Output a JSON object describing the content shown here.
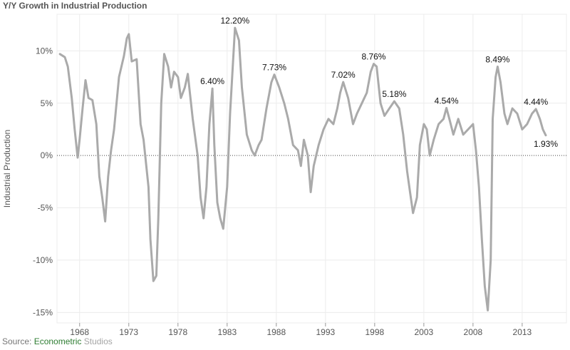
{
  "title": "Y/Y Growth in Industrial Production",
  "source": {
    "prefix": "Source: ",
    "brand_part1": "Econometric",
    "brand_part2": " Studios"
  },
  "colors": {
    "line": "#aaaaaa",
    "grid": "#ececec",
    "zero_line": "#444444",
    "brand_green": "#2e7d32",
    "brand_gray": "#a5a5a5"
  },
  "chart_data": {
    "type": "line",
    "title": "Y/Y Growth in Industrial Production",
    "xlabel": "",
    "ylabel": "Industrial Production",
    "x_ticks": [
      1968,
      1973,
      1978,
      1983,
      1988,
      1993,
      1998,
      2003,
      2008,
      2013
    ],
    "y_ticks": [
      10,
      5,
      0,
      -5,
      -10,
      -15
    ],
    "y_tick_labels": [
      "10%",
      "5%",
      "0%",
      "-5%",
      "-10%",
      "-15%"
    ],
    "xlim": [
      1965.7,
      2017.5
    ],
    "ylim": [
      -16,
      13.5
    ],
    "grid": true,
    "series": [
      {
        "name": "",
        "points": [
          [
            1966.0,
            9.7
          ],
          [
            1966.5,
            9.4
          ],
          [
            1966.8,
            8.5
          ],
          [
            1967.2,
            5.5
          ],
          [
            1967.5,
            2.5
          ],
          [
            1967.8,
            -0.2
          ],
          [
            1968.0,
            1.5
          ],
          [
            1968.3,
            4.5
          ],
          [
            1968.6,
            7.2
          ],
          [
            1968.9,
            5.5
          ],
          [
            1969.3,
            5.3
          ],
          [
            1969.7,
            3.0
          ],
          [
            1970.0,
            -2.0
          ],
          [
            1970.3,
            -4.0
          ],
          [
            1970.6,
            -6.3
          ],
          [
            1970.9,
            -2.0
          ],
          [
            1971.2,
            0.5
          ],
          [
            1971.5,
            2.5
          ],
          [
            1972.0,
            7.5
          ],
          [
            1972.5,
            9.5
          ],
          [
            1972.8,
            11.2
          ],
          [
            1973.0,
            11.6
          ],
          [
            1973.3,
            9.0
          ],
          [
            1973.8,
            9.2
          ],
          [
            1974.2,
            3.0
          ],
          [
            1974.5,
            1.5
          ],
          [
            1975.0,
            -3.0
          ],
          [
            1975.2,
            -8.0
          ],
          [
            1975.5,
            -12.0
          ],
          [
            1975.8,
            -11.5
          ],
          [
            1976.0,
            -6.0
          ],
          [
            1976.3,
            5.0
          ],
          [
            1976.6,
            9.7
          ],
          [
            1977.0,
            8.5
          ],
          [
            1977.3,
            6.5
          ],
          [
            1977.6,
            8.0
          ],
          [
            1978.0,
            7.5
          ],
          [
            1978.3,
            5.5
          ],
          [
            1978.7,
            6.5
          ],
          [
            1979.0,
            7.8
          ],
          [
            1979.5,
            3.5
          ],
          [
            1980.0,
            0.0
          ],
          [
            1980.3,
            -4.0
          ],
          [
            1980.6,
            -6.0
          ],
          [
            1980.9,
            -3.0
          ],
          [
            1981.2,
            3.0
          ],
          [
            1981.5,
            6.4
          ],
          [
            1981.7,
            1.0
          ],
          [
            1982.0,
            -4.5
          ],
          [
            1982.3,
            -6.0
          ],
          [
            1982.6,
            -7.0
          ],
          [
            1983.0,
            -3.0
          ],
          [
            1983.3,
            4.0
          ],
          [
            1983.6,
            9.0
          ],
          [
            1983.8,
            12.2
          ],
          [
            1984.2,
            11.0
          ],
          [
            1984.5,
            6.5
          ],
          [
            1985.0,
            2.0
          ],
          [
            1985.5,
            0.5
          ],
          [
            1985.8,
            0.0
          ],
          [
            1986.2,
            1.0
          ],
          [
            1986.5,
            1.5
          ],
          [
            1987.0,
            4.5
          ],
          [
            1987.5,
            7.0
          ],
          [
            1987.8,
            7.73
          ],
          [
            1988.3,
            6.5
          ],
          [
            1988.8,
            5.0
          ],
          [
            1989.2,
            3.5
          ],
          [
            1989.7,
            1.0
          ],
          [
            1990.2,
            0.5
          ],
          [
            1990.5,
            -1.0
          ],
          [
            1990.8,
            1.5
          ],
          [
            1991.2,
            0.0
          ],
          [
            1991.5,
            -3.5
          ],
          [
            1991.8,
            -1.0
          ],
          [
            1992.3,
            1.0
          ],
          [
            1992.8,
            2.5
          ],
          [
            1993.3,
            3.5
          ],
          [
            1993.8,
            3.0
          ],
          [
            1994.2,
            4.5
          ],
          [
            1994.5,
            6.0
          ],
          [
            1994.8,
            7.02
          ],
          [
            1995.3,
            5.5
          ],
          [
            1995.8,
            3.0
          ],
          [
            1996.2,
            4.0
          ],
          [
            1996.7,
            5.0
          ],
          [
            1997.2,
            6.0
          ],
          [
            1997.6,
            8.0
          ],
          [
            1997.9,
            8.76
          ],
          [
            1998.2,
            8.5
          ],
          [
            1998.6,
            5.0
          ],
          [
            1999.0,
            3.8
          ],
          [
            1999.5,
            4.5
          ],
          [
            2000.0,
            5.18
          ],
          [
            2000.5,
            4.5
          ],
          [
            2000.9,
            2.0
          ],
          [
            2001.3,
            -1.5
          ],
          [
            2001.6,
            -3.5
          ],
          [
            2001.9,
            -5.5
          ],
          [
            2002.3,
            -4.0
          ],
          [
            2002.6,
            1.0
          ],
          [
            2003.0,
            3.0
          ],
          [
            2003.3,
            2.5
          ],
          [
            2003.6,
            0.0
          ],
          [
            2004.0,
            1.5
          ],
          [
            2004.5,
            3.0
          ],
          [
            2005.0,
            3.5
          ],
          [
            2005.3,
            4.54
          ],
          [
            2005.6,
            3.5
          ],
          [
            2006.0,
            2.0
          ],
          [
            2006.5,
            3.5
          ],
          [
            2007.0,
            2.0
          ],
          [
            2007.5,
            2.5
          ],
          [
            2008.0,
            3.0
          ],
          [
            2008.3,
            0.5
          ],
          [
            2008.6,
            -3.0
          ],
          [
            2008.9,
            -8.0
          ],
          [
            2009.2,
            -12.5
          ],
          [
            2009.5,
            -14.8
          ],
          [
            2009.8,
            -10.0
          ],
          [
            2010.0,
            3.5
          ],
          [
            2010.3,
            7.5
          ],
          [
            2010.5,
            8.49
          ],
          [
            2010.8,
            7.0
          ],
          [
            2011.2,
            4.0
          ],
          [
            2011.5,
            3.0
          ],
          [
            2012.0,
            4.5
          ],
          [
            2012.5,
            4.0
          ],
          [
            2013.0,
            2.5
          ],
          [
            2013.5,
            3.0
          ],
          [
            2014.0,
            4.0
          ],
          [
            2014.4,
            4.44
          ],
          [
            2014.8,
            3.5
          ],
          [
            2015.1,
            2.5
          ],
          [
            2015.4,
            1.93
          ]
        ]
      }
    ],
    "annotations": [
      {
        "x": 1981.5,
        "y": 6.4,
        "text": "6.40%",
        "anchor": "middle",
        "pos": "above"
      },
      {
        "x": 1983.8,
        "y": 12.2,
        "text": "12.20%",
        "anchor": "middle",
        "pos": "above"
      },
      {
        "x": 1987.8,
        "y": 7.73,
        "text": "7.73%",
        "anchor": "middle",
        "pos": "above"
      },
      {
        "x": 1994.8,
        "y": 7.02,
        "text": "7.02%",
        "anchor": "middle",
        "pos": "above"
      },
      {
        "x": 1997.9,
        "y": 8.76,
        "text": "8.76%",
        "anchor": "middle",
        "pos": "above"
      },
      {
        "x": 2000.0,
        "y": 5.18,
        "text": "5.18%",
        "anchor": "middle",
        "pos": "above"
      },
      {
        "x": 2005.3,
        "y": 4.54,
        "text": "4.54%",
        "anchor": "middle",
        "pos": "above"
      },
      {
        "x": 2010.5,
        "y": 8.49,
        "text": "8.49%",
        "anchor": "middle",
        "pos": "above"
      },
      {
        "x": 2014.4,
        "y": 4.44,
        "text": "4.44%",
        "anchor": "middle",
        "pos": "above"
      },
      {
        "x": 2015.4,
        "y": 1.93,
        "text": "1.93%",
        "anchor": "middle",
        "pos": "below"
      }
    ]
  }
}
